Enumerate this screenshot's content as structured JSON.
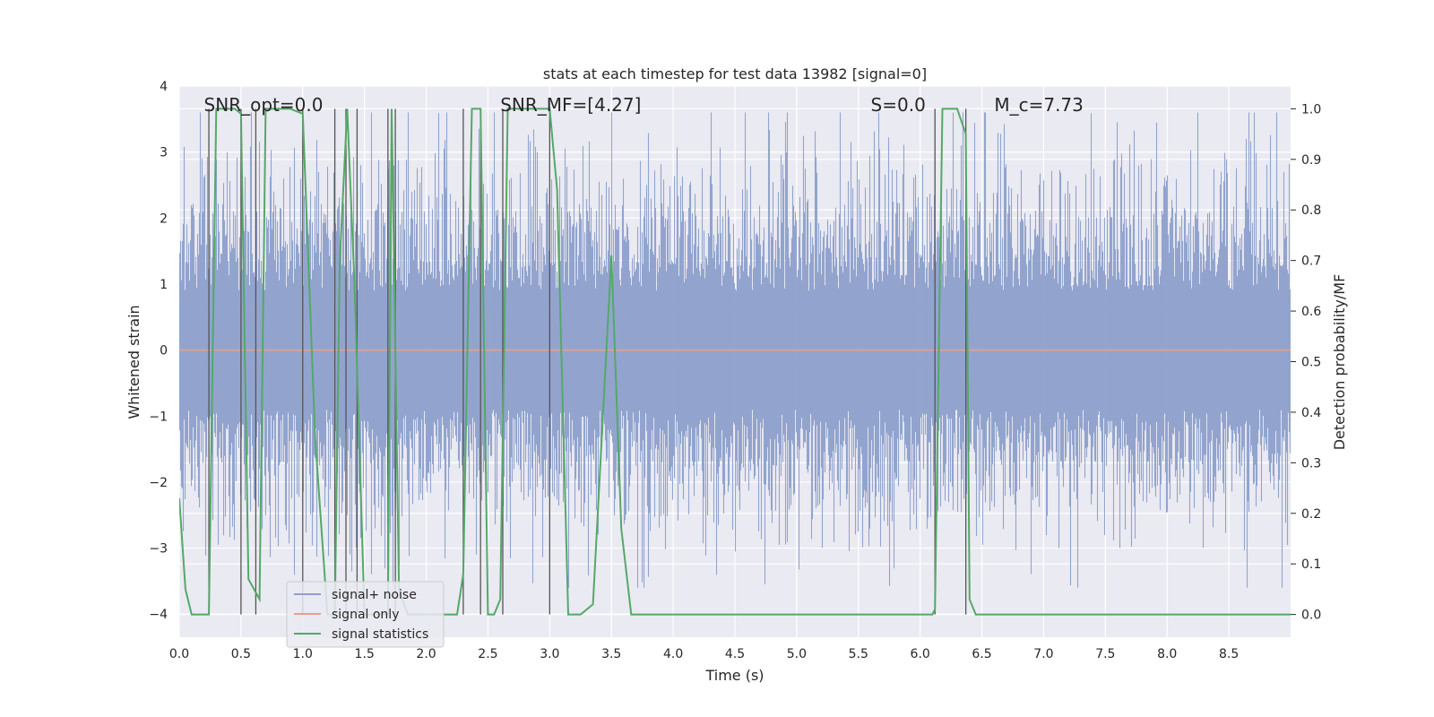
{
  "chart_data": {
    "type": "line",
    "title": "stats at each timestep for test data 13982 [signal=0]",
    "xlabel": "Time (s)",
    "ylabel": "Whitened strain",
    "y2label": "Detection probability/MF",
    "xlim": [
      0,
      9.0
    ],
    "ylim": [
      -4.35,
      4.0
    ],
    "y2lim": [
      -0.045,
      1.045
    ],
    "x_ticks": [
      "0.0",
      "0.5",
      "1.0",
      "1.5",
      "2.0",
      "2.5",
      "3.0",
      "3.5",
      "4.0",
      "4.5",
      "5.0",
      "5.5",
      "6.0",
      "6.5",
      "7.0",
      "7.5",
      "8.0",
      "8.5"
    ],
    "y_ticks": [
      "4",
      "3",
      "2",
      "1",
      "0",
      "−1",
      "−2",
      "−3",
      "−4"
    ],
    "y_tick_values": [
      4,
      3,
      2,
      1,
      0,
      -1,
      -2,
      -3,
      -4
    ],
    "y2_ticks": [
      "1.0",
      "0.9",
      "0.8",
      "0.7",
      "0.6",
      "0.5",
      "0.4",
      "0.3",
      "0.2",
      "0.1",
      "0.0"
    ],
    "y2_tick_values": [
      1.0,
      0.9,
      0.8,
      0.7,
      0.6,
      0.5,
      0.4,
      0.3,
      0.2,
      0.1,
      0.0
    ],
    "grid": true,
    "legend_position": "bottom-left",
    "annotations": [
      {
        "text": "SNR_opt=0.0",
        "x": 0.2
      },
      {
        "text": "SNR_MF=[4.27]",
        "x": 2.6
      },
      {
        "text": "S=0.0",
        "x": 5.6
      },
      {
        "text": "M_c=7.73",
        "x": 6.6
      }
    ],
    "vertical_lines_x": [
      0.24,
      0.5,
      0.62,
      1.0,
      1.26,
      1.35,
      1.44,
      1.69,
      1.75,
      2.3,
      2.44,
      2.62,
      3.0,
      6.12,
      6.37
    ],
    "series": [
      {
        "name": "signal+ noise",
        "color": "#8da0cb",
        "axis": "left",
        "noise_std": 1.0,
        "envelope_max": 3.6,
        "x_range": [
          0,
          9.0
        ]
      },
      {
        "name": "signal only",
        "color": "#e5a08a",
        "axis": "left",
        "x": [
          0,
          9.0
        ],
        "y": [
          0,
          0
        ]
      },
      {
        "name": "signal statistics",
        "color": "#55a868",
        "axis": "right",
        "x": [
          0,
          0.05,
          0.1,
          0.2,
          0.24,
          0.3,
          0.35,
          0.45,
          0.5,
          0.56,
          0.65,
          0.7,
          0.8,
          0.9,
          1.0,
          1.1,
          1.2,
          1.26,
          1.3,
          1.36,
          1.42,
          1.5,
          1.6,
          1.69,
          1.72,
          1.78,
          1.85,
          2.0,
          2.15,
          2.25,
          2.3,
          2.37,
          2.44,
          2.5,
          2.55,
          2.6,
          2.66,
          2.75,
          2.9,
          3.0,
          3.06,
          3.15,
          3.25,
          3.35,
          3.5,
          3.58,
          3.66,
          3.75,
          4.0,
          5.0,
          6.0,
          6.1,
          6.12,
          6.18,
          6.3,
          6.37,
          6.4,
          6.45,
          7.0,
          8.0,
          9.0
        ],
        "y": [
          0.23,
          0.05,
          0.0,
          0.0,
          0.0,
          1.0,
          1.0,
          1.0,
          0.99,
          0.07,
          0.03,
          1.0,
          1.0,
          1.0,
          0.99,
          0.35,
          0.0,
          0.0,
          0.7,
          1.0,
          0.65,
          0.0,
          0.0,
          0.0,
          1.0,
          0.05,
          0.0,
          0.0,
          0.0,
          0.0,
          0.08,
          1.0,
          1.0,
          0.0,
          0.0,
          0.03,
          1.0,
          1.0,
          1.0,
          1.0,
          0.84,
          0.0,
          0.0,
          0.02,
          0.71,
          0.17,
          0.0,
          0.0,
          0.0,
          0.0,
          0.0,
          0.0,
          0.01,
          1.0,
          1.0,
          0.95,
          0.03,
          0.0,
          0.0,
          0.0,
          0.0
        ]
      }
    ]
  },
  "legend": {
    "items": [
      {
        "label": "signal+ noise",
        "color": "#8da0cb"
      },
      {
        "label": "signal only",
        "color": "#e5a08a"
      },
      {
        "label": "signal statistics",
        "color": "#55a868"
      }
    ]
  }
}
